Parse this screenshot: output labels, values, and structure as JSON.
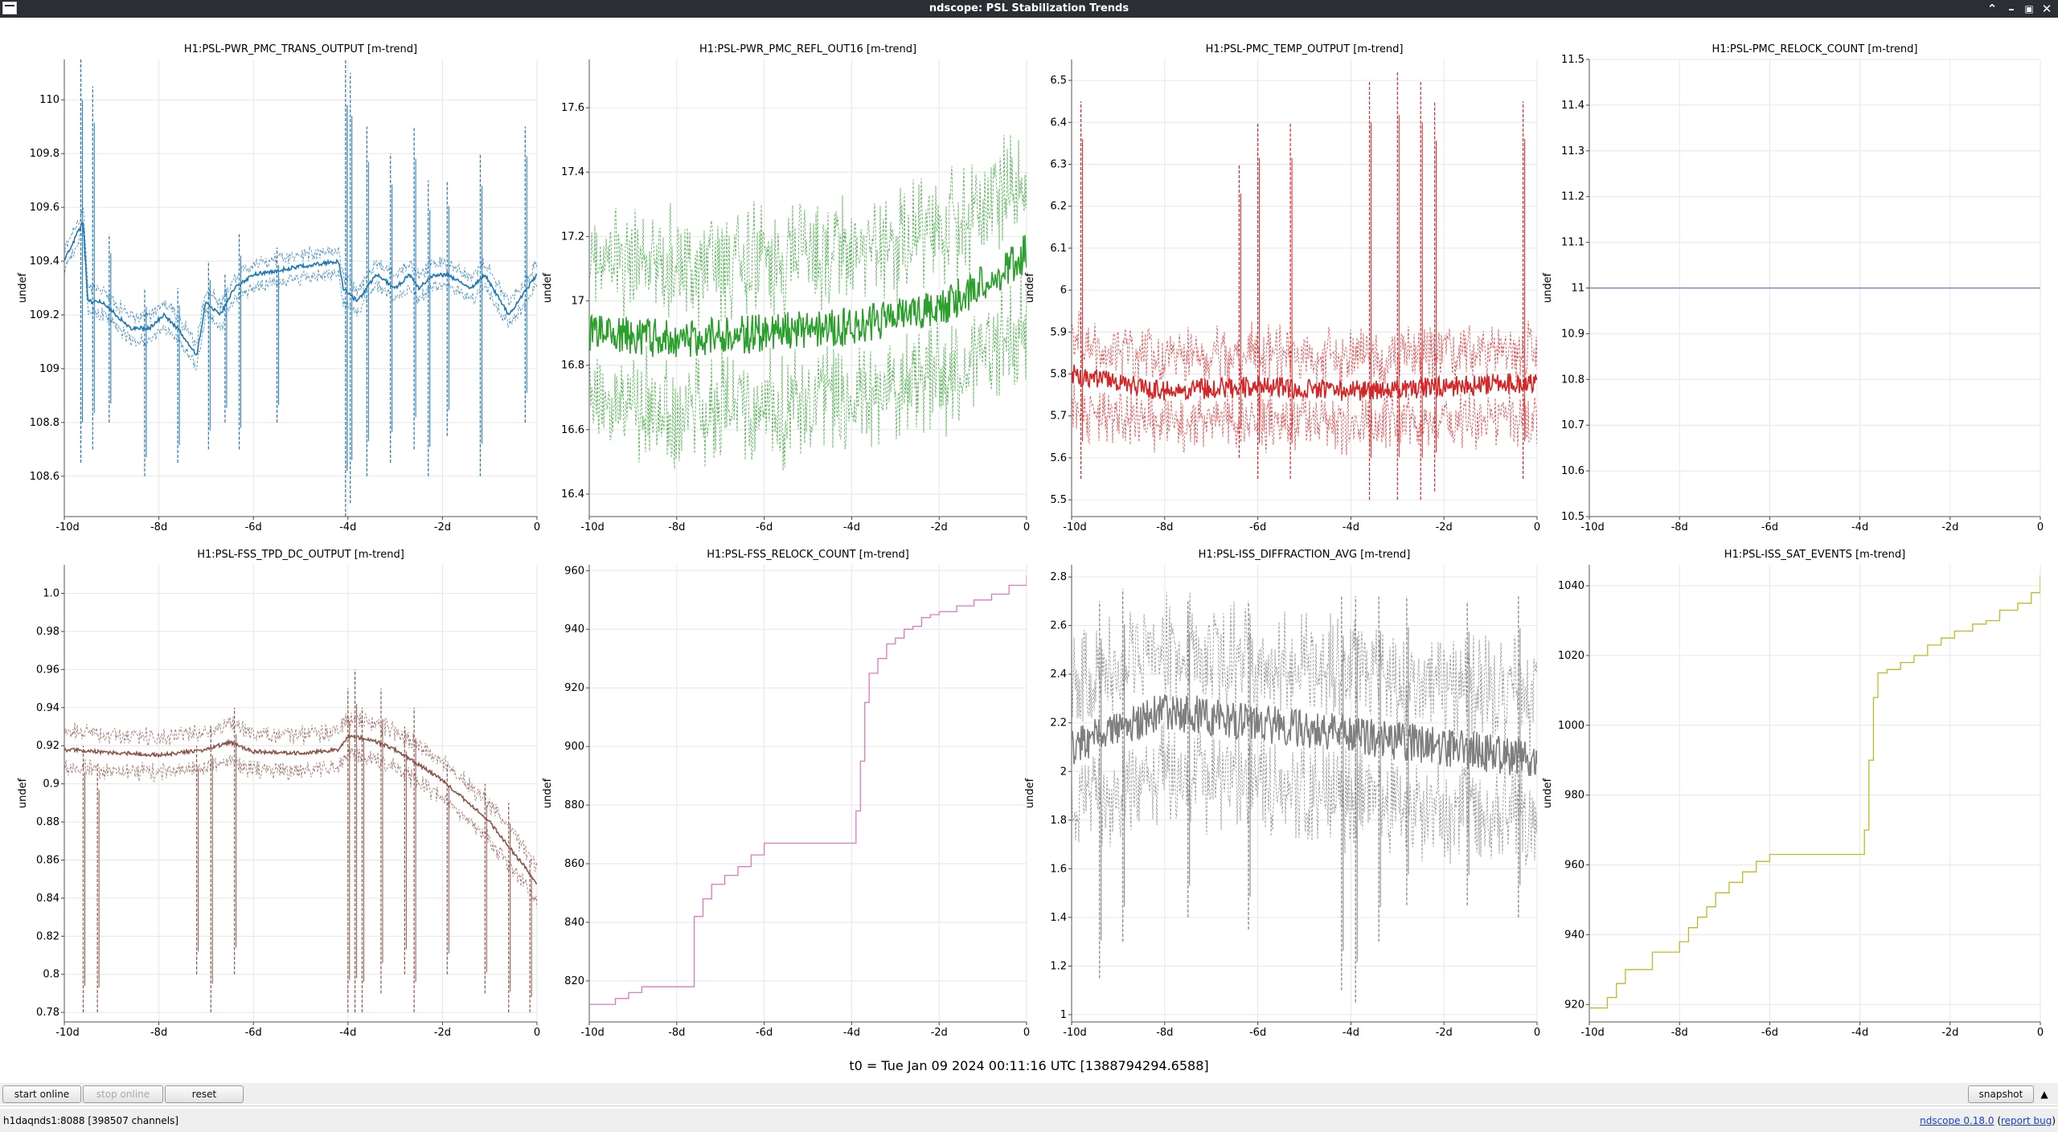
{
  "window": {
    "title": "ndscope: PSL Stabilization Trends",
    "controls": [
      "minimize",
      "restore",
      "maximize",
      "close"
    ]
  },
  "t0_label": "t0 = Tue Jan 09 2024 00:11:16 UTC [1388794294.6588]",
  "toolbar": {
    "start_online": "start online",
    "stop_online": "stop online",
    "reset": "reset",
    "snapshot": "snapshot",
    "collapse_icon": "triangle-up-icon"
  },
  "status": {
    "server": "h1daqnds1:8088  [398507 channels]",
    "version": "ndscope 0.18.0",
    "report_bug": "report bug"
  },
  "chart_data": [
    {
      "type": "line",
      "title": "H1:PSL-PWR_PMC_TRANS_OUTPUT [m-trend]",
      "ylabel": "undef",
      "color": "#1f77b4",
      "mode": "trend",
      "xlim": [
        -10,
        0
      ],
      "ylim": [
        108.45,
        110.15
      ],
      "xticks": [
        -10,
        -8,
        -6,
        -4,
        -2,
        0
      ],
      "xtick_labels": [
        "-10d",
        "-8d",
        "-6d",
        "-4d",
        "-2d",
        "0"
      ],
      "yticks": [
        108.6,
        108.8,
        109,
        109.2,
        109.4,
        109.6,
        109.8,
        110
      ],
      "ytick_labels": [
        "108.6",
        "108.8",
        "109",
        "109.2",
        "109.4",
        "109.6",
        "109.8",
        "110"
      ],
      "x": [
        -10,
        -9.6,
        -9.5,
        -9.2,
        -8.6,
        -8.2,
        -7.9,
        -7.6,
        -7.2,
        -7,
        -6.7,
        -6.4,
        -6,
        -5,
        -4.2,
        -4.1,
        -3.8,
        -3.4,
        -3,
        -2.7,
        -2.5,
        -2.2,
        -1.9,
        -1.4,
        -1.1,
        -0.6,
        0
      ],
      "y": [
        109.4,
        109.55,
        109.25,
        109.25,
        109.15,
        109.15,
        109.2,
        109.15,
        109.05,
        109.25,
        109.2,
        109.3,
        109.35,
        109.38,
        109.4,
        109.3,
        109.25,
        109.35,
        109.3,
        109.35,
        109.3,
        109.35,
        109.35,
        109.3,
        109.35,
        109.2,
        109.35
      ],
      "band": 0.06,
      "noise": 0.015,
      "spikes": [
        [
          -9.65,
          108.65,
          110.15
        ],
        [
          -9.4,
          108.7,
          110.05
        ],
        [
          -9.05,
          108.8,
          109.5
        ],
        [
          -8.3,
          108.6,
          109.3
        ],
        [
          -7.6,
          108.65,
          109.3
        ],
        [
          -6.95,
          108.7,
          109.4
        ],
        [
          -6.6,
          108.8,
          109.35
        ],
        [
          -6.3,
          108.7,
          109.5
        ],
        [
          -5.5,
          108.8,
          109.45
        ],
        [
          -4.05,
          108.45,
          110.15
        ],
        [
          -3.95,
          108.5,
          110.1
        ],
        [
          -3.6,
          108.6,
          109.9
        ],
        [
          -3.1,
          108.65,
          109.8
        ],
        [
          -2.6,
          108.7,
          109.9
        ],
        [
          -2.3,
          108.6,
          109.7
        ],
        [
          -1.9,
          108.75,
          109.7
        ],
        [
          -1.2,
          108.6,
          109.8
        ],
        [
          -0.25,
          108.8,
          109.9
        ]
      ]
    },
    {
      "type": "line",
      "title": "H1:PSL-PWR_PMC_REFL_OUT16 [m-trend]",
      "ylabel": "undef",
      "color": "#2ca02c",
      "mode": "trend",
      "xlim": [
        -10,
        0
      ],
      "ylim": [
        16.33,
        17.75
      ],
      "xticks": [
        -10,
        -8,
        -6,
        -4,
        -2,
        0
      ],
      "xtick_labels": [
        "-10d",
        "-8d",
        "-6d",
        "-4d",
        "-2d",
        "0"
      ],
      "yticks": [
        16.4,
        16.6,
        16.8,
        17,
        17.2,
        17.4,
        17.6
      ],
      "ytick_labels": [
        "16.4",
        "16.6",
        "16.8",
        "17",
        "17.2",
        "17.4",
        "17.6"
      ],
      "x": [
        -10,
        -8,
        -6,
        -4,
        -2,
        -1,
        0
      ],
      "y": [
        16.9,
        16.88,
        16.9,
        16.92,
        16.98,
        17.05,
        17.15
      ],
      "band": 0.32,
      "noise": 0.12,
      "spikes": []
    },
    {
      "type": "line",
      "title": "H1:PSL-PMC_TEMP_OUTPUT [m-trend]",
      "ylabel": "undef",
      "color": "#d62728",
      "mode": "trend",
      "xlim": [
        -10,
        0
      ],
      "ylim": [
        5.46,
        6.55
      ],
      "xticks": [
        -10,
        -8,
        -6,
        -4,
        -2,
        0
      ],
      "xtick_labels": [
        "-10d",
        "-8d",
        "-6d",
        "-4d",
        "-2d",
        "0"
      ],
      "yticks": [
        5.5,
        5.6,
        5.7,
        5.8,
        5.9,
        6,
        6.1,
        6.2,
        6.3,
        6.4,
        6.5
      ],
      "ytick_labels": [
        "5.5",
        "5.6",
        "5.7",
        "5.8",
        "5.9",
        "6",
        "6.1",
        "6.2",
        "6.3",
        "6.4",
        "6.5"
      ],
      "x": [
        -10,
        -8,
        -6,
        -4,
        -2,
        0
      ],
      "y": [
        5.8,
        5.76,
        5.77,
        5.76,
        5.77,
        5.78
      ],
      "band": 0.11,
      "noise": 0.05,
      "spikes": [
        [
          -9.8,
          5.55,
          6.45
        ],
        [
          -6.4,
          5.6,
          6.3
        ],
        [
          -6,
          5.55,
          6.4
        ],
        [
          -5.3,
          5.55,
          6.4
        ],
        [
          -3.6,
          5.5,
          6.5
        ],
        [
          -3,
          5.5,
          6.52
        ],
        [
          -2.5,
          5.5,
          6.5
        ],
        [
          -2.2,
          5.52,
          6.45
        ],
        [
          -0.3,
          5.55,
          6.45
        ]
      ]
    },
    {
      "type": "line",
      "title": "H1:PSL-PMC_RELOCK_COUNT [m-trend]",
      "ylabel": "undef",
      "color": "#9467bd",
      "mode": "step",
      "xlim": [
        -10,
        0
      ],
      "ylim": [
        10.5,
        11.5
      ],
      "xticks": [
        -10,
        -8,
        -6,
        -4,
        -2,
        0
      ],
      "xtick_labels": [
        "-10d",
        "-8d",
        "-6d",
        "-4d",
        "-2d",
        "0"
      ],
      "yticks": [
        10.5,
        10.6,
        10.7,
        10.8,
        10.9,
        11,
        11.1,
        11.2,
        11.3,
        11.4,
        11.5
      ],
      "ytick_labels": [
        "10.5",
        "10.6",
        "10.7",
        "10.8",
        "10.9",
        "11",
        "11.1",
        "11.2",
        "11.3",
        "11.4",
        "11.5"
      ],
      "x": [
        -10,
        0
      ],
      "y": [
        11,
        11
      ]
    },
    {
      "type": "line",
      "title": "H1:PSL-FSS_TPD_DC_OUTPUT [m-trend]",
      "ylabel": "undef",
      "color": "#8c564b",
      "mode": "trend",
      "xlim": [
        -10,
        0
      ],
      "ylim": [
        0.775,
        1.015
      ],
      "xticks": [
        -10,
        -8,
        -6,
        -4,
        -2,
        0
      ],
      "xtick_labels": [
        "-10d",
        "-8d",
        "-6d",
        "-4d",
        "-2d",
        "0"
      ],
      "yticks": [
        0.78,
        0.8,
        0.82,
        0.84,
        0.86,
        0.88,
        0.9,
        0.92,
        0.94,
        0.96,
        0.98,
        1.0
      ],
      "ytick_labels": [
        "0.78",
        "0.8",
        "0.82",
        "0.84",
        "0.86",
        "0.88",
        "0.9",
        "0.92",
        "0.94",
        "0.96",
        "0.98",
        "1.0"
      ],
      "x": [
        -10,
        -8,
        -7,
        -6.5,
        -6,
        -5,
        -4.2,
        -4,
        -3.5,
        -3,
        -2.5,
        -2,
        -1,
        0
      ],
      "y": [
        0.918,
        0.915,
        0.918,
        0.922,
        0.917,
        0.916,
        0.918,
        0.925,
        0.923,
        0.918,
        0.91,
        0.902,
        0.88,
        0.848
      ],
      "band": 0.013,
      "noise": 0.002,
      "spikes": [
        [
          -9.6,
          0.78,
          0.92
        ],
        [
          -9.3,
          0.78,
          0.91
        ],
        [
          -7.2,
          0.8,
          0.92
        ],
        [
          -6.9,
          0.78,
          0.93
        ],
        [
          -6.4,
          0.8,
          0.94
        ],
        [
          -4,
          0.78,
          0.95
        ],
        [
          -3.85,
          0.78,
          0.96
        ],
        [
          -3.7,
          0.78,
          0.94
        ],
        [
          -3.3,
          0.79,
          0.95
        ],
        [
          -2.8,
          0.8,
          0.93
        ],
        [
          -2.6,
          0.78,
          0.94
        ],
        [
          -1.9,
          0.8,
          0.91
        ],
        [
          -1.1,
          0.79,
          0.9
        ],
        [
          -0.6,
          0.78,
          0.89
        ],
        [
          -0.15,
          0.78,
          0.86
        ]
      ]
    },
    {
      "type": "line",
      "title": "H1:PSL-FSS_RELOCK_COUNT [m-trend]",
      "ylabel": "undef",
      "color": "#e377c2",
      "mode": "step",
      "xlim": [
        -10,
        0
      ],
      "ylim": [
        806,
        962
      ],
      "xticks": [
        -10,
        -8,
        -6,
        -4,
        -2,
        0
      ],
      "xtick_labels": [
        "-10d",
        "-8d",
        "-6d",
        "-4d",
        "-2d",
        "0"
      ],
      "yticks": [
        820,
        840,
        860,
        880,
        900,
        920,
        940,
        960
      ],
      "ytick_labels": [
        "820",
        "840",
        "860",
        "880",
        "900",
        "920",
        "940",
        "960"
      ],
      "x": [
        -10,
        -9.4,
        -9.1,
        -8.8,
        -8.3,
        -7.6,
        -7.4,
        -7.2,
        -6.9,
        -6.6,
        -6.3,
        -6,
        -4,
        -3.9,
        -3.8,
        -3.7,
        -3.6,
        -3.4,
        -3.2,
        -3,
        -2.8,
        -2.6,
        -2.4,
        -2.2,
        -2,
        -1.6,
        -1.2,
        -0.8,
        -0.4,
        0
      ],
      "y": [
        812,
        814,
        816,
        818,
        818,
        842,
        848,
        853,
        856,
        859,
        863,
        867,
        867,
        878,
        895,
        915,
        925,
        930,
        935,
        937,
        940,
        941,
        944,
        945,
        946,
        948,
        950,
        952,
        955,
        958
      ]
    },
    {
      "type": "line",
      "title": "H1:PSL-ISS_DIFFRACTION_AVG [m-trend]",
      "ylabel": "undef",
      "color": "#7f7f7f",
      "mode": "trend",
      "xlim": [
        -10,
        0
      ],
      "ylim": [
        0.97,
        2.85
      ],
      "xticks": [
        -10,
        -8,
        -6,
        -4,
        -2,
        0
      ],
      "xtick_labels": [
        "-10d",
        "-8d",
        "-6d",
        "-4d",
        "-2d",
        "0"
      ],
      "yticks": [
        1,
        1.2,
        1.4,
        1.6,
        1.8,
        2,
        2.2,
        2.4,
        2.6,
        2.8
      ],
      "ytick_labels": [
        "1",
        "1.2",
        "1.4",
        "1.6",
        "1.8",
        "2",
        "2.2",
        "2.4",
        "2.6",
        "2.8"
      ],
      "x": [
        -10,
        -8,
        -6,
        -4,
        -2,
        0
      ],
      "y": [
        2.1,
        2.25,
        2.2,
        2.15,
        2.1,
        2.05
      ],
      "band": 0.35,
      "noise": 0.16,
      "spikes": [
        [
          -9.4,
          1.15,
          2.7
        ],
        [
          -8.9,
          1.3,
          2.75
        ],
        [
          -7.5,
          1.4,
          2.7
        ],
        [
          -6.2,
          1.35,
          2.7
        ],
        [
          -4.2,
          1.1,
          2.72
        ],
        [
          -3.9,
          1.05,
          2.72
        ],
        [
          -3.4,
          1.3,
          2.72
        ],
        [
          -2.8,
          1.45,
          2.72
        ],
        [
          -1.5,
          1.45,
          2.7
        ],
        [
          -0.4,
          1.4,
          2.72
        ]
      ]
    },
    {
      "type": "line",
      "title": "H1:PSL-ISS_SAT_EVENTS [m-trend]",
      "ylabel": "undef",
      "color": "#bcbd22",
      "mode": "step",
      "xlim": [
        -10,
        0
      ],
      "ylim": [
        915,
        1046
      ],
      "xticks": [
        -10,
        -8,
        -6,
        -4,
        -2,
        0
      ],
      "xtick_labels": [
        "-10d",
        "-8d",
        "-6d",
        "-4d",
        "-2d",
        "0"
      ],
      "yticks": [
        920,
        940,
        960,
        980,
        1000,
        1020,
        1040
      ],
      "ytick_labels": [
        "920",
        "940",
        "960",
        "980",
        "1000",
        "1020",
        "1040"
      ],
      "x": [
        -10,
        -9.6,
        -9.4,
        -9.2,
        -8.6,
        -8.2,
        -8,
        -7.8,
        -7.6,
        -7.4,
        -7.2,
        -6.9,
        -6.6,
        -6.3,
        -6,
        -4,
        -3.9,
        -3.8,
        -3.7,
        -3.6,
        -3.4,
        -3.1,
        -2.8,
        -2.5,
        -2.2,
        -1.9,
        -1.5,
        -1.2,
        -0.9,
        -0.5,
        -0.2,
        0
      ],
      "y": [
        919,
        922,
        926,
        930,
        935,
        935,
        938,
        942,
        945,
        948,
        952,
        955,
        958,
        961,
        963,
        963,
        970,
        990,
        1008,
        1015,
        1016,
        1018,
        1020,
        1023,
        1025,
        1027,
        1029,
        1030,
        1033,
        1035,
        1038,
        1043
      ]
    }
  ]
}
